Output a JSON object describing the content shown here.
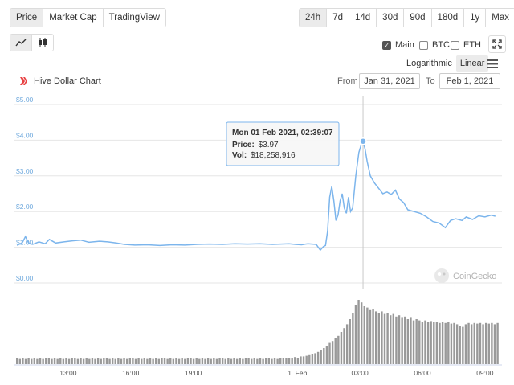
{
  "tabs": {
    "type": [
      {
        "label": "Price",
        "active": true
      },
      {
        "label": "Market Cap",
        "active": false
      },
      {
        "label": "TradingView",
        "active": false
      }
    ],
    "ranges": [
      {
        "label": "24h",
        "active": true
      },
      {
        "label": "7d",
        "active": false
      },
      {
        "label": "14d",
        "active": false
      },
      {
        "label": "30d",
        "active": false
      },
      {
        "label": "90d",
        "active": false
      },
      {
        "label": "180d",
        "active": false
      },
      {
        "label": "1y",
        "active": false
      },
      {
        "label": "Max",
        "active": false
      }
    ]
  },
  "chart_type_icons": [
    {
      "icon": "line-chart-icon",
      "active": true
    },
    {
      "icon": "candlestick-icon",
      "active": false
    }
  ],
  "compare": [
    {
      "label": "Main",
      "checked": true
    },
    {
      "label": "BTC",
      "checked": false
    },
    {
      "label": "ETH",
      "checked": false
    }
  ],
  "scale": [
    {
      "label": "Logarithmic",
      "active": false
    },
    {
      "label": "Linear",
      "active": true
    }
  ],
  "title": "Hive Dollar Chart",
  "date_range": {
    "from_label": "From",
    "from": "Jan 31, 2021",
    "to_label": "To",
    "to": "Feb 1, 2021"
  },
  "tooltip": {
    "date": "Mon 01 Feb 2021, 02:39:07",
    "price_label": "Price:",
    "price": "$3.97",
    "vol_label": "Vol:",
    "vol": "$18,258,916"
  },
  "watermark": "CoinGecko",
  "colors": {
    "line": "#7cb5ec",
    "volume": "#999999",
    "accent": "#e84142",
    "axis_text": "#6fa9dd"
  },
  "chart_data": {
    "type": "line",
    "title": "Hive Dollar Chart",
    "yticks": [
      "$0.00",
      "$1.00",
      "$2.00",
      "$3.00",
      "$4.00",
      "$5.00"
    ],
    "ylim": [
      0,
      5
    ],
    "xlim": [
      10.5,
      33.7
    ],
    "xticks": [
      {
        "v": 13,
        "label": "13:00"
      },
      {
        "v": 16,
        "label": "16:00"
      },
      {
        "v": 19,
        "label": "19:00"
      },
      {
        "v": 24,
        "label": "1. Feb"
      },
      {
        "v": 27,
        "label": "03:00"
      },
      {
        "v": 30,
        "label": "06:00"
      },
      {
        "v": 33,
        "label": "09:00"
      }
    ],
    "grid": true,
    "legend": "none",
    "series": [
      {
        "price": [
          [
            10.55,
            1.05
          ],
          [
            10.8,
            1.13
          ],
          [
            10.95,
            1.3
          ],
          [
            11.1,
            1.12
          ],
          [
            11.3,
            1.08
          ],
          [
            11.6,
            1.15
          ],
          [
            11.9,
            1.1
          ],
          [
            12.1,
            1.22
          ],
          [
            12.4,
            1.12
          ],
          [
            12.8,
            1.15
          ],
          [
            13.2,
            1.18
          ],
          [
            13.6,
            1.2
          ],
          [
            14.0,
            1.14
          ],
          [
            14.5,
            1.17
          ],
          [
            14.9,
            1.15
          ],
          [
            15.3,
            1.12
          ],
          [
            15.7,
            1.08
          ],
          [
            16.2,
            1.06
          ],
          [
            16.8,
            1.07
          ],
          [
            17.4,
            1.05
          ],
          [
            18.0,
            1.07
          ],
          [
            18.6,
            1.06
          ],
          [
            19.2,
            1.08
          ],
          [
            19.8,
            1.09
          ],
          [
            20.4,
            1.08
          ],
          [
            21.0,
            1.1
          ],
          [
            21.6,
            1.09
          ],
          [
            22.2,
            1.1
          ],
          [
            22.8,
            1.08
          ],
          [
            23.2,
            1.09
          ],
          [
            23.6,
            1.1
          ],
          [
            23.9,
            1.08
          ],
          [
            24.2,
            1.07
          ],
          [
            24.5,
            1.1
          ],
          [
            24.9,
            1.08
          ],
          [
            25.1,
            0.92
          ],
          [
            25.25,
            1.02
          ],
          [
            25.35,
            1.05
          ],
          [
            25.45,
            1.45
          ],
          [
            25.55,
            2.4
          ],
          [
            25.65,
            2.7
          ],
          [
            25.75,
            2.3
          ],
          [
            25.85,
            1.75
          ],
          [
            25.95,
            1.9
          ],
          [
            26.05,
            2.3
          ],
          [
            26.15,
            2.5
          ],
          [
            26.25,
            2.1
          ],
          [
            26.35,
            1.95
          ],
          [
            26.45,
            2.4
          ],
          [
            26.55,
            2.0
          ],
          [
            26.65,
            2.1
          ],
          [
            26.8,
            3.0
          ],
          [
            26.95,
            3.65
          ],
          [
            27.05,
            3.85
          ],
          [
            27.15,
            3.97
          ],
          [
            27.25,
            3.75
          ],
          [
            27.35,
            3.4
          ],
          [
            27.5,
            3.0
          ],
          [
            27.7,
            2.8
          ],
          [
            27.9,
            2.65
          ],
          [
            28.1,
            2.5
          ],
          [
            28.3,
            2.55
          ],
          [
            28.5,
            2.48
          ],
          [
            28.7,
            2.6
          ],
          [
            28.9,
            2.35
          ],
          [
            29.1,
            2.25
          ],
          [
            29.3,
            2.05
          ],
          [
            29.6,
            2.0
          ],
          [
            29.9,
            1.95
          ],
          [
            30.2,
            1.85
          ],
          [
            30.5,
            1.72
          ],
          [
            30.8,
            1.68
          ],
          [
            31.1,
            1.55
          ],
          [
            31.35,
            1.75
          ],
          [
            31.6,
            1.8
          ],
          [
            31.9,
            1.75
          ],
          [
            32.1,
            1.85
          ],
          [
            32.4,
            1.78
          ],
          [
            32.7,
            1.88
          ],
          [
            33.0,
            1.85
          ],
          [
            33.3,
            1.9
          ],
          [
            33.5,
            1.87
          ]
        ],
        "volume": [
          0.09,
          0.08,
          0.09,
          0.08,
          0.09,
          0.08,
          0.09,
          0.08,
          0.09,
          0.08,
          0.09,
          0.09,
          0.08,
          0.09,
          0.08,
          0.09,
          0.08,
          0.09,
          0.08,
          0.09,
          0.09,
          0.08,
          0.09,
          0.08,
          0.09,
          0.08,
          0.09,
          0.08,
          0.09,
          0.08,
          0.09,
          0.09,
          0.08,
          0.09,
          0.08,
          0.09,
          0.08,
          0.09,
          0.08,
          0.09,
          0.09,
          0.08,
          0.09,
          0.08,
          0.09,
          0.08,
          0.09,
          0.08,
          0.09,
          0.08,
          0.09,
          0.09,
          0.08,
          0.09,
          0.08,
          0.09,
          0.08,
          0.09,
          0.08,
          0.09,
          0.09,
          0.08,
          0.09,
          0.08,
          0.09,
          0.08,
          0.09,
          0.08,
          0.09,
          0.08,
          0.09,
          0.09,
          0.08,
          0.09,
          0.08,
          0.09,
          0.08,
          0.09,
          0.08,
          0.09,
          0.09,
          0.08,
          0.09,
          0.08,
          0.09,
          0.08,
          0.09,
          0.09,
          0.08,
          0.09,
          0.08,
          0.09,
          0.09,
          0.1,
          0.09,
          0.1,
          0.11,
          0.1,
          0.12,
          0.12,
          0.13,
          0.14,
          0.15,
          0.17,
          0.19,
          0.22,
          0.25,
          0.28,
          0.33,
          0.36,
          0.4,
          0.44,
          0.5,
          0.56,
          0.62,
          0.7,
          0.8,
          0.92,
          1.0,
          0.96,
          0.9,
          0.88,
          0.84,
          0.86,
          0.82,
          0.8,
          0.82,
          0.78,
          0.8,
          0.76,
          0.78,
          0.74,
          0.76,
          0.72,
          0.74,
          0.7,
          0.72,
          0.68,
          0.7,
          0.68,
          0.66,
          0.68,
          0.66,
          0.67,
          0.65,
          0.66,
          0.64,
          0.66,
          0.64,
          0.65,
          0.63,
          0.64,
          0.62,
          0.6,
          0.58,
          0.62,
          0.64,
          0.62,
          0.64,
          0.63,
          0.64,
          0.62,
          0.64,
          0.63,
          0.64,
          0.62,
          0.64
        ]
      }
    ],
    "tooltip_point": [
      27.15,
      3.97
    ]
  }
}
